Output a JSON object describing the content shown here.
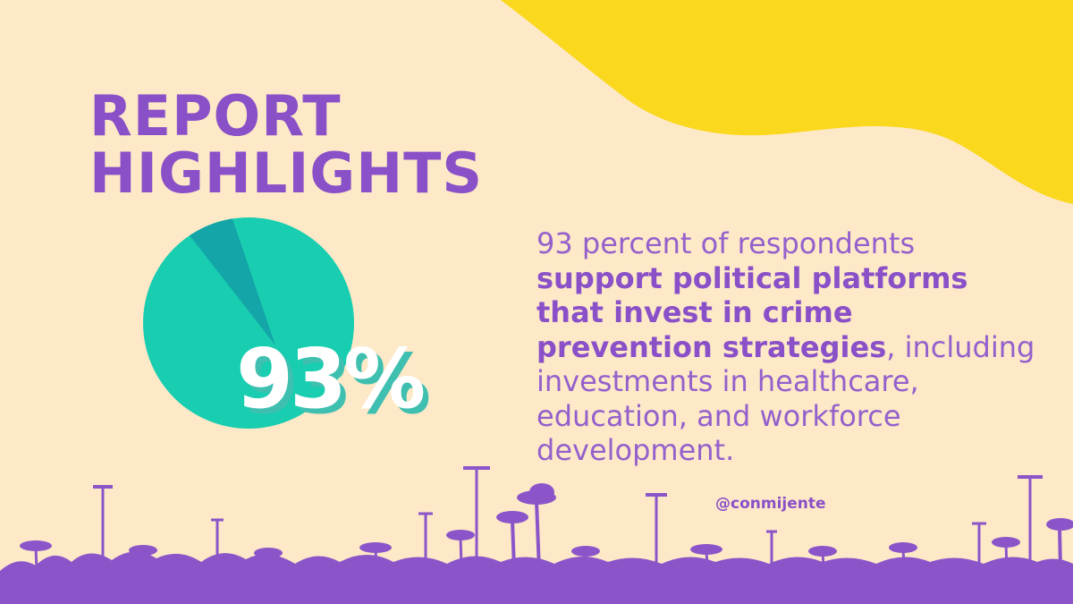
{
  "title": {
    "line1": "REPORT",
    "line2": "HIGHLIGHTS"
  },
  "stat": {
    "value": 93,
    "label": "93%"
  },
  "body": {
    "intro": "93 percent of respondents",
    "bold": "support political platforms that invest in crime prevention strategies",
    "outro": ", including investments in healthcare, education, and workforce development."
  },
  "handle": "@conmijente",
  "colors": {
    "background": "#fde9c7",
    "accent_purple": "#8a50c8",
    "blob_yellow": "#fad81d",
    "pie_teal": "#19cdb0",
    "pie_slice": "#13a5a8",
    "skyline": "#8b55c9"
  }
}
